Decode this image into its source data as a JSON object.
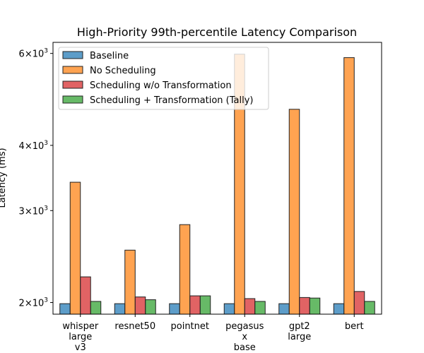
{
  "chart_data": {
    "type": "bar",
    "title": "High-Priority 99th-percentile Latency Comparison",
    "ylabel": "Latency (ms)",
    "xlabel": "",
    "yscale": "log",
    "ylim": [
      1900,
      6300
    ],
    "yticks": [
      {
        "value": 2000,
        "mantissa": "2",
        "base": "10",
        "exp": "3"
      },
      {
        "value": 3000,
        "mantissa": "3",
        "base": "10",
        "exp": "3"
      },
      {
        "value": 4000,
        "mantissa": "4",
        "base": "10",
        "exp": "3"
      },
      {
        "value": 6000,
        "mantissa": "6",
        "base": "10",
        "exp": "3"
      }
    ],
    "categories": [
      [
        "whisper",
        "large",
        "v3"
      ],
      [
        "resnet50"
      ],
      [
        "pointnet"
      ],
      [
        "pegasus",
        "x",
        "base"
      ],
      [
        "gpt2",
        "large"
      ],
      [
        "bert"
      ]
    ],
    "series": [
      {
        "name": "Baseline",
        "color": "#1f77b4",
        "values": [
          1990,
          1990,
          1990,
          1990,
          1990,
          1990
        ]
      },
      {
        "name": "No Scheduling",
        "color": "#ff7f0e",
        "values": [
          3400,
          2520,
          2820,
          5980,
          4690,
          5890
        ]
      },
      {
        "name": "Scheduling w/o Transformation",
        "color": "#d62728",
        "values": [
          2240,
          2050,
          2060,
          2035,
          2045,
          2100
        ]
      },
      {
        "name": "Scheduling + Transformation (Tally)",
        "color": "#2ca02c",
        "values": [
          2010,
          2025,
          2060,
          2010,
          2040,
          2010
        ]
      }
    ],
    "legend_position": "upper-left",
    "grid": false
  }
}
